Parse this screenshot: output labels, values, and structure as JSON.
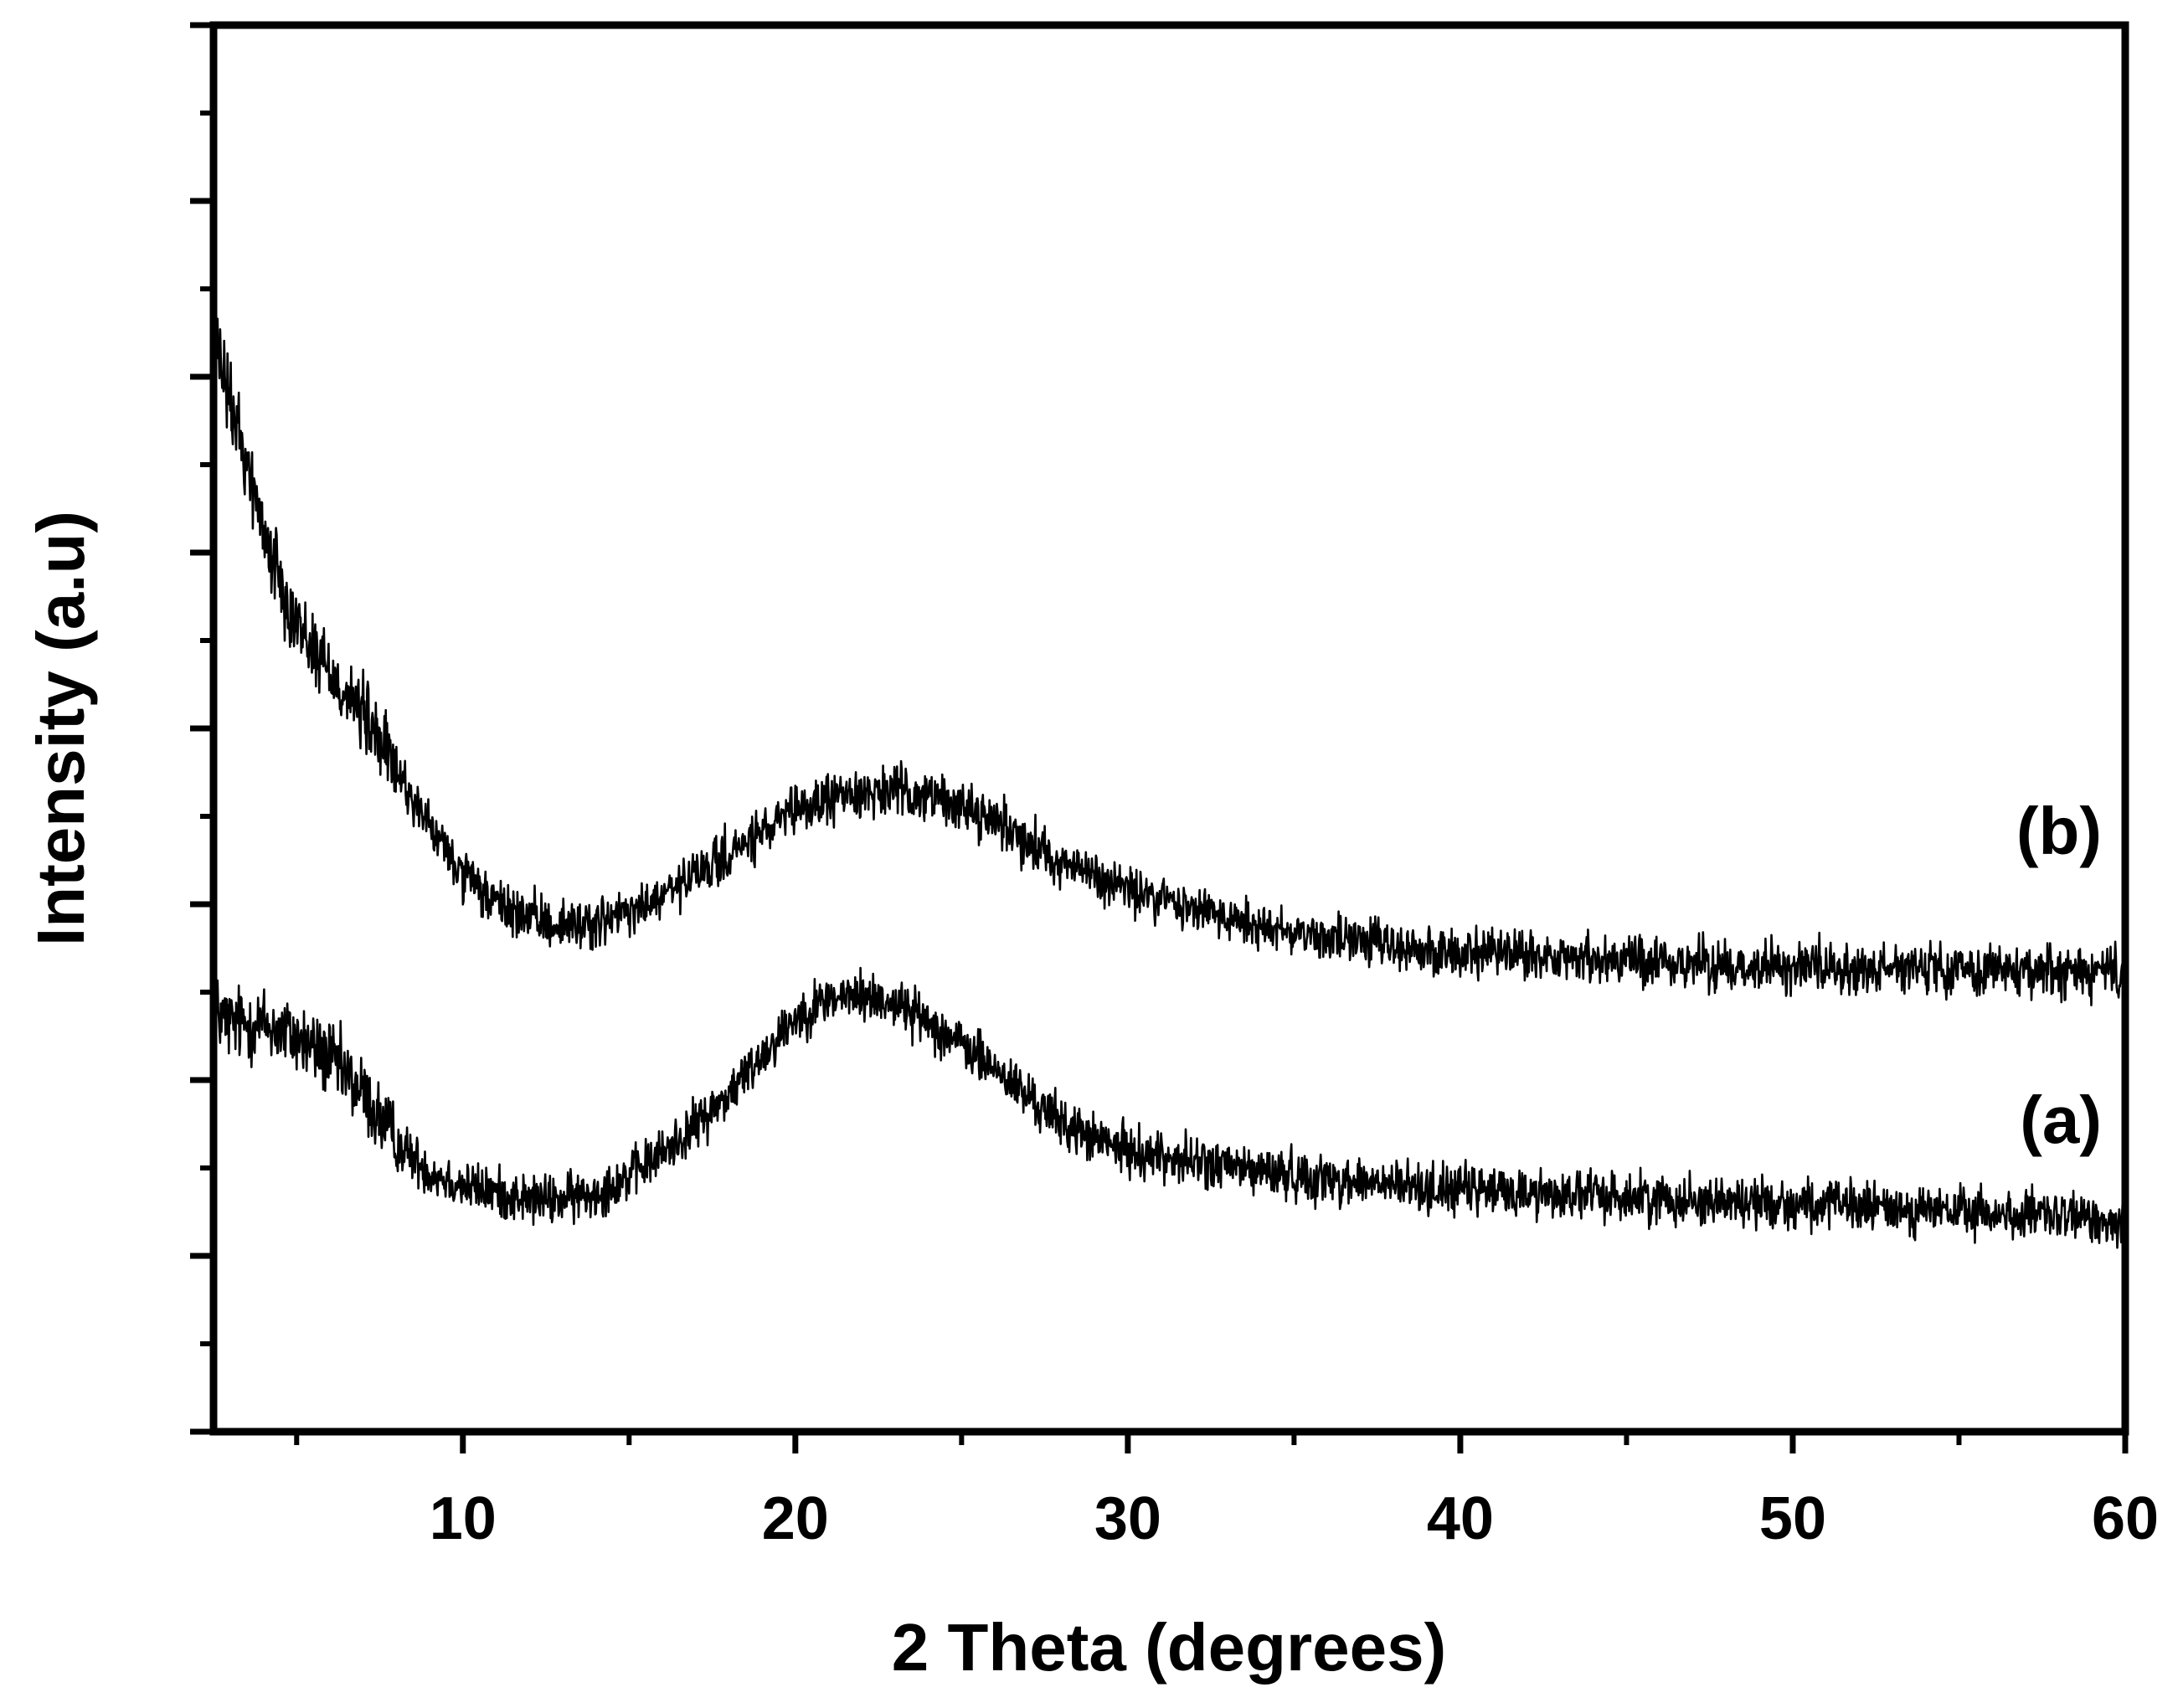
{
  "chart_data": {
    "type": "line",
    "title": "",
    "xlabel": "2 Theta (degrees)",
    "ylabel": "Intensity (a.u)",
    "xlim": [
      2.5,
      60
    ],
    "ylim": [
      0,
      10
    ],
    "x_ticks": [
      10,
      20,
      30,
      40,
      50,
      60
    ],
    "y_ticks": [],
    "grid": false,
    "series": [
      {
        "name": "(a)",
        "color": "#000000",
        "x": [
          2.5,
          3,
          4,
          5,
          6,
          7,
          8,
          9,
          10,
          11,
          12,
          13,
          14,
          15,
          16,
          17,
          18,
          19,
          20,
          21,
          22,
          23,
          24,
          25,
          26,
          27,
          28,
          29,
          30,
          32,
          34,
          36,
          38,
          40,
          44,
          48,
          52,
          56,
          60
        ],
        "y": [
          3.0,
          2.9,
          2.9,
          2.8,
          2.65,
          2.4,
          2.05,
          1.85,
          1.75,
          1.7,
          1.65,
          1.65,
          1.7,
          1.82,
          1.98,
          2.18,
          2.4,
          2.68,
          2.95,
          3.08,
          3.1,
          3.05,
          2.92,
          2.75,
          2.58,
          2.38,
          2.2,
          2.08,
          2.0,
          1.92,
          1.85,
          1.8,
          1.75,
          1.72,
          1.68,
          1.64,
          1.6,
          1.55,
          1.5
        ]
      },
      {
        "name": "(b)",
        "color": "#000000",
        "x": [
          2.5,
          3,
          3.5,
          4,
          5,
          6,
          7,
          8,
          9,
          10,
          11,
          12,
          13,
          14,
          15,
          16,
          17,
          18,
          19,
          20,
          21,
          22,
          23,
          24,
          25,
          26,
          27,
          28,
          29,
          30,
          32,
          34,
          36,
          38,
          40,
          44,
          48,
          52,
          56,
          60
        ],
        "y": [
          7.8,
          7.3,
          6.9,
          6.4,
          5.75,
          5.4,
          5.1,
          4.7,
          4.3,
          3.95,
          3.75,
          3.65,
          3.6,
          3.62,
          3.68,
          3.8,
          3.95,
          4.1,
          4.25,
          4.4,
          4.5,
          4.55,
          4.55,
          4.52,
          4.45,
          4.35,
          4.2,
          4.05,
          3.95,
          3.85,
          3.72,
          3.6,
          3.52,
          3.45,
          3.4,
          3.36,
          3.32,
          3.3,
          3.28,
          3.26
        ]
      }
    ]
  }
}
